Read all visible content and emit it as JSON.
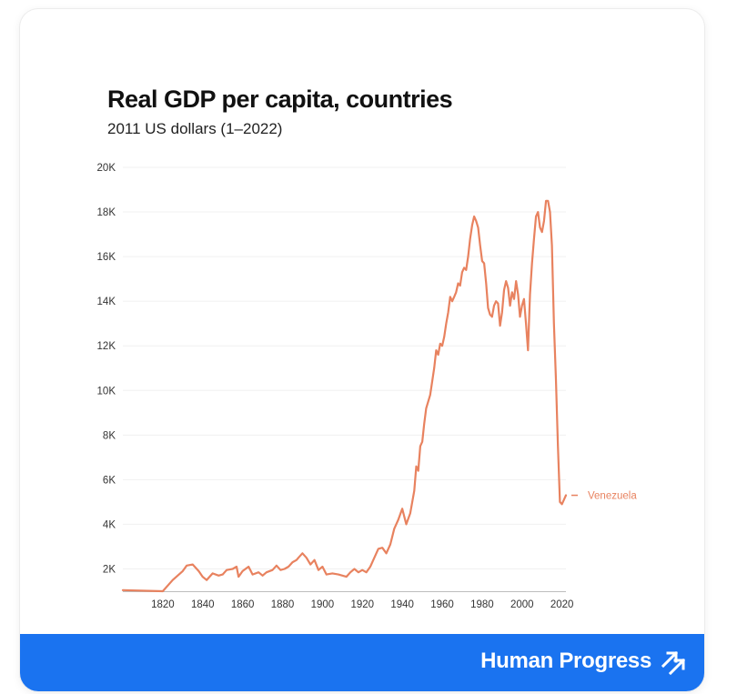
{
  "chart_data": {
    "type": "line",
    "title": "Real GDP per capita, countries",
    "subtitle": "2011 US dollars (1–2022)",
    "xlabel": "",
    "ylabel": "",
    "xlim": [
      1800,
      2022
    ],
    "ylim": [
      1000,
      20000
    ],
    "x_ticks": [
      1820,
      1840,
      1860,
      1880,
      1900,
      1920,
      1940,
      1960,
      1980,
      2000,
      2020
    ],
    "y_ticks": [
      2000,
      4000,
      6000,
      8000,
      10000,
      12000,
      14000,
      16000,
      18000,
      20000
    ],
    "y_tick_labels": [
      "2K",
      "4K",
      "6K",
      "8K",
      "10K",
      "12K",
      "14K",
      "16K",
      "18K",
      "20K"
    ],
    "x_tick_labels": [
      "1820",
      "1840",
      "1860",
      "1880",
      "1900",
      "1920",
      "1940",
      "1960",
      "1980",
      "2000",
      "2020"
    ],
    "grid": true,
    "series": [
      {
        "name": "Venezuela",
        "color": "#e8825f",
        "points": [
          [
            1800,
            1050
          ],
          [
            1820,
            1000
          ],
          [
            1825,
            1500
          ],
          [
            1830,
            1900
          ],
          [
            1832,
            2150
          ],
          [
            1835,
            2200
          ],
          [
            1838,
            1900
          ],
          [
            1840,
            1650
          ],
          [
            1842,
            1500
          ],
          [
            1845,
            1800
          ],
          [
            1848,
            1700
          ],
          [
            1850,
            1750
          ],
          [
            1852,
            1950
          ],
          [
            1855,
            2000
          ],
          [
            1857,
            2100
          ],
          [
            1858,
            1650
          ],
          [
            1860,
            1900
          ],
          [
            1863,
            2100
          ],
          [
            1865,
            1750
          ],
          [
            1868,
            1850
          ],
          [
            1870,
            1700
          ],
          [
            1872,
            1850
          ],
          [
            1875,
            1950
          ],
          [
            1877,
            2150
          ],
          [
            1879,
            1950
          ],
          [
            1881,
            2000
          ],
          [
            1883,
            2100
          ],
          [
            1885,
            2300
          ],
          [
            1887,
            2400
          ],
          [
            1888,
            2500
          ],
          [
            1890,
            2700
          ],
          [
            1892,
            2500
          ],
          [
            1894,
            2200
          ],
          [
            1896,
            2400
          ],
          [
            1898,
            1950
          ],
          [
            1900,
            2100
          ],
          [
            1902,
            1750
          ],
          [
            1905,
            1800
          ],
          [
            1908,
            1750
          ],
          [
            1910,
            1700
          ],
          [
            1912,
            1650
          ],
          [
            1914,
            1850
          ],
          [
            1916,
            2000
          ],
          [
            1918,
            1850
          ],
          [
            1920,
            1950
          ],
          [
            1922,
            1850
          ],
          [
            1924,
            2100
          ],
          [
            1926,
            2500
          ],
          [
            1928,
            2900
          ],
          [
            1930,
            2950
          ],
          [
            1932,
            2700
          ],
          [
            1934,
            3100
          ],
          [
            1936,
            3800
          ],
          [
            1938,
            4200
          ],
          [
            1940,
            4700
          ],
          [
            1942,
            4000
          ],
          [
            1944,
            4500
          ],
          [
            1946,
            5500
          ],
          [
            1947,
            6600
          ],
          [
            1948,
            6400
          ],
          [
            1949,
            7500
          ],
          [
            1950,
            7700
          ],
          [
            1951,
            8500
          ],
          [
            1952,
            9200
          ],
          [
            1954,
            9800
          ],
          [
            1956,
            11000
          ],
          [
            1957,
            11800
          ],
          [
            1958,
            11600
          ],
          [
            1959,
            12100
          ],
          [
            1960,
            12000
          ],
          [
            1961,
            12400
          ],
          [
            1962,
            13000
          ],
          [
            1963,
            13500
          ],
          [
            1964,
            14200
          ],
          [
            1965,
            14000
          ],
          [
            1966,
            14200
          ],
          [
            1967,
            14400
          ],
          [
            1968,
            14800
          ],
          [
            1969,
            14700
          ],
          [
            1970,
            15300
          ],
          [
            1971,
            15500
          ],
          [
            1972,
            15400
          ],
          [
            1973,
            16000
          ],
          [
            1974,
            16800
          ],
          [
            1975,
            17400
          ],
          [
            1976,
            17800
          ],
          [
            1977,
            17600
          ],
          [
            1978,
            17300
          ],
          [
            1979,
            16500
          ],
          [
            1980,
            15800
          ],
          [
            1981,
            15700
          ],
          [
            1982,
            14800
          ],
          [
            1983,
            13700
          ],
          [
            1984,
            13400
          ],
          [
            1985,
            13300
          ],
          [
            1986,
            13800
          ],
          [
            1987,
            14000
          ],
          [
            1988,
            13900
          ],
          [
            1989,
            12900
          ],
          [
            1990,
            13500
          ],
          [
            1991,
            14500
          ],
          [
            1992,
            14900
          ],
          [
            1993,
            14600
          ],
          [
            1994,
            13800
          ],
          [
            1995,
            14400
          ],
          [
            1996,
            14100
          ],
          [
            1997,
            14900
          ],
          [
            1998,
            14300
          ],
          [
            1999,
            13300
          ],
          [
            2000,
            13800
          ],
          [
            2001,
            14100
          ],
          [
            2002,
            13000
          ],
          [
            2003,
            11800
          ],
          [
            2004,
            14300
          ],
          [
            2005,
            15700
          ],
          [
            2006,
            16800
          ],
          [
            2007,
            17800
          ],
          [
            2008,
            18000
          ],
          [
            2009,
            17300
          ],
          [
            2010,
            17100
          ],
          [
            2011,
            17600
          ],
          [
            2012,
            18500
          ],
          [
            2013,
            18500
          ],
          [
            2014,
            18000
          ],
          [
            2015,
            16500
          ],
          [
            2016,
            13000
          ],
          [
            2017,
            10500
          ],
          [
            2018,
            7500
          ],
          [
            2019,
            5000
          ],
          [
            2020,
            4900
          ],
          [
            2021,
            5100
          ],
          [
            2022,
            5300
          ]
        ]
      }
    ]
  },
  "footer": {
    "brand": "Human Progress",
    "brand_icon": "double-arrow-up-right-icon",
    "background": "#1a73f0"
  }
}
